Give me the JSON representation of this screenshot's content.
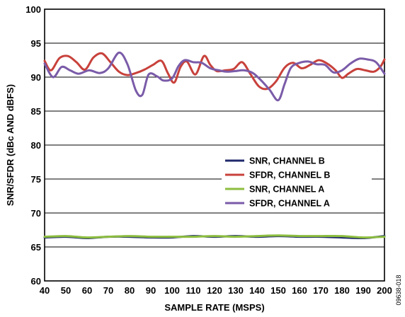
{
  "chart_data": {
    "type": "line",
    "title": "",
    "xlabel": "SAMPLE RATE (MSPS)",
    "ylabel": "SNR/SFDR (dBc AND dBFS)",
    "xlim": [
      40,
      200
    ],
    "ylim": [
      60,
      100
    ],
    "x_ticks": [
      40,
      50,
      60,
      70,
      80,
      90,
      100,
      110,
      120,
      130,
      140,
      150,
      160,
      170,
      180,
      190,
      200
    ],
    "y_ticks": [
      60,
      65,
      70,
      75,
      80,
      85,
      90,
      95,
      100
    ],
    "grid": "horizontal",
    "legend_position": "center-right",
    "series": [
      {
        "name": "SNR, CHANNEL B",
        "color": "#1f2a6b",
        "points": [
          [
            40,
            66.4
          ],
          [
            50,
            66.5
          ],
          [
            60,
            66.3
          ],
          [
            70,
            66.5
          ],
          [
            80,
            66.5
          ],
          [
            90,
            66.4
          ],
          [
            100,
            66.4
          ],
          [
            110,
            66.6
          ],
          [
            120,
            66.5
          ],
          [
            130,
            66.6
          ],
          [
            140,
            66.5
          ],
          [
            150,
            66.6
          ],
          [
            160,
            66.5
          ],
          [
            170,
            66.5
          ],
          [
            180,
            66.4
          ],
          [
            190,
            66.3
          ],
          [
            200,
            66.6
          ]
        ]
      },
      {
        "name": "SFDR, CHANNEL B",
        "color": "#c8413b",
        "points": [
          [
            40,
            92.4
          ],
          [
            43,
            91.0
          ],
          [
            47,
            92.8
          ],
          [
            51,
            93.1
          ],
          [
            55,
            92.2
          ],
          [
            59,
            91.1
          ],
          [
            63,
            92.9
          ],
          [
            67,
            93.5
          ],
          [
            71,
            92.2
          ],
          [
            75,
            90.8
          ],
          [
            79,
            90.3
          ],
          [
            83,
            90.6
          ],
          [
            87,
            91.1
          ],
          [
            91,
            91.8
          ],
          [
            95,
            92.4
          ],
          [
            98,
            90.6
          ],
          [
            101,
            89.2
          ],
          [
            104,
            91.5
          ],
          [
            107,
            92.3
          ],
          [
            111,
            90.4
          ],
          [
            115,
            93.1
          ],
          [
            118,
            91.8
          ],
          [
            121,
            90.9
          ],
          [
            125,
            91.0
          ],
          [
            129,
            91.2
          ],
          [
            133,
            92.2
          ],
          [
            137,
            90.4
          ],
          [
            141,
            88.6
          ],
          [
            145,
            88.3
          ],
          [
            149,
            89.4
          ],
          [
            153,
            91.4
          ],
          [
            157,
            92.1
          ],
          [
            161,
            91.3
          ],
          [
            165,
            91.8
          ],
          [
            169,
            92.5
          ],
          [
            173,
            92.0
          ],
          [
            177,
            91.0
          ],
          [
            180,
            89.9
          ],
          [
            183,
            90.5
          ],
          [
            187,
            91.2
          ],
          [
            191,
            91.0
          ],
          [
            195,
            90.8
          ],
          [
            198,
            91.5
          ],
          [
            200,
            92.6
          ]
        ]
      },
      {
        "name": "SNR, CHANNEL A",
        "color": "#8cbd3f",
        "points": [
          [
            40,
            66.5
          ],
          [
            50,
            66.6
          ],
          [
            60,
            66.4
          ],
          [
            70,
            66.5
          ],
          [
            80,
            66.6
          ],
          [
            90,
            66.5
          ],
          [
            100,
            66.5
          ],
          [
            110,
            66.5
          ],
          [
            120,
            66.6
          ],
          [
            130,
            66.5
          ],
          [
            140,
            66.6
          ],
          [
            150,
            66.7
          ],
          [
            160,
            66.6
          ],
          [
            170,
            66.6
          ],
          [
            180,
            66.6
          ],
          [
            190,
            66.4
          ],
          [
            200,
            66.5
          ]
        ]
      },
      {
        "name": "SFDR, CHANNEL A",
        "color": "#7a5ba8",
        "points": [
          [
            40,
            92.0
          ],
          [
            44,
            90.0
          ],
          [
            48,
            91.5
          ],
          [
            52,
            91.0
          ],
          [
            56,
            90.5
          ],
          [
            61,
            91.0
          ],
          [
            66,
            90.6
          ],
          [
            70,
            91.3
          ],
          [
            75,
            93.6
          ],
          [
            79,
            91.9
          ],
          [
            83,
            88.0
          ],
          [
            86,
            87.4
          ],
          [
            89,
            90.4
          ],
          [
            93,
            90.1
          ],
          [
            96,
            89.5
          ],
          [
            100,
            89.8
          ],
          [
            103,
            91.6
          ],
          [
            106,
            92.5
          ],
          [
            110,
            92.2
          ],
          [
            114,
            92.1
          ],
          [
            118,
            91.3
          ],
          [
            122,
            91.0
          ],
          [
            126,
            90.8
          ],
          [
            130,
            90.9
          ],
          [
            134,
            91.0
          ],
          [
            138,
            90.6
          ],
          [
            142,
            89.5
          ],
          [
            146,
            88.1
          ],
          [
            150,
            86.6
          ],
          [
            153,
            89.0
          ],
          [
            156,
            91.4
          ],
          [
            160,
            92.1
          ],
          [
            164,
            92.3
          ],
          [
            168,
            91.9
          ],
          [
            172,
            91.8
          ],
          [
            176,
            90.7
          ],
          [
            180,
            91.0
          ],
          [
            184,
            92.0
          ],
          [
            188,
            92.7
          ],
          [
            192,
            92.6
          ],
          [
            196,
            92.2
          ],
          [
            200,
            90.5
          ]
        ]
      }
    ],
    "figure_id": "09638-018"
  }
}
